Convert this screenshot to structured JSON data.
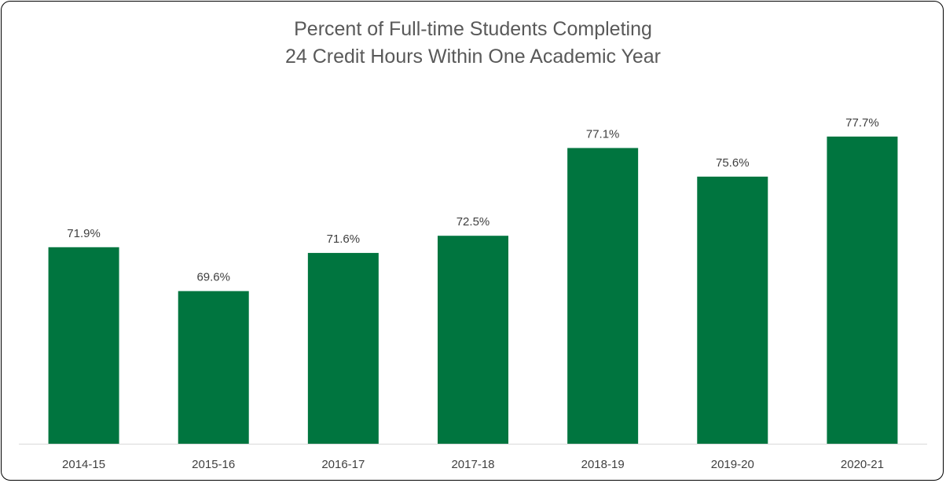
{
  "chart_data": {
    "type": "bar",
    "title_line1": "Percent of Full-time Students Completing",
    "title_line2": "24 Credit Hours Within One Academic Year",
    "categories": [
      "2014-15",
      "2015-16",
      "2016-17",
      "2017-18",
      "2018-19",
      "2019-20",
      "2020-21"
    ],
    "values": [
      71.9,
      69.6,
      71.6,
      72.5,
      77.1,
      75.6,
      77.7
    ],
    "value_labels": [
      "71.9%",
      "69.6%",
      "71.6%",
      "72.5%",
      "77.1%",
      "75.6%",
      "77.7%"
    ],
    "xlabel": "",
    "ylabel": "",
    "ylim": [
      61.6,
      80
    ],
    "grid": false,
    "legend": "none",
    "bar_color": "#00753f",
    "axis_color": "#d9d9d9"
  }
}
